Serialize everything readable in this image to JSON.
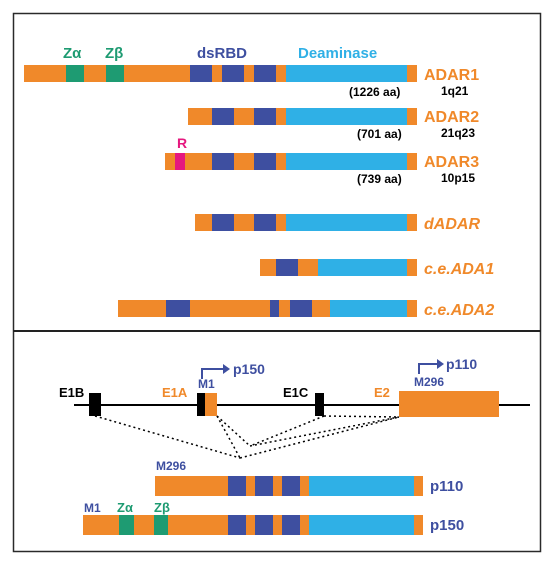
{
  "colors": {
    "orange": "#F0892A",
    "blue": "#2FB0E6",
    "navy": "#3E4FA0",
    "green": "#1E9B72",
    "magenta": "#E5187F",
    "black": "#000000",
    "frame": "#2a2a2a",
    "divider": "#222222"
  },
  "domain_labels": {
    "z_alpha": "Zα",
    "z_beta": "Zβ",
    "dsrbd": "dsRBD",
    "deaminase": "Deaminase",
    "r_domain": "R"
  },
  "proteins": [
    {
      "name": "ADAR1",
      "italic": false,
      "locus": "1q21",
      "length": "(1226 aa)"
    },
    {
      "name": "ADAR2",
      "italic": false,
      "locus": "21q23",
      "length": "(701 aa)"
    },
    {
      "name": "ADAR3",
      "italic": false,
      "locus": "10p15",
      "length": "(739 aa)"
    },
    {
      "name": "dADAR",
      "italic": true,
      "locus": "",
      "length": ""
    },
    {
      "name": "c.e.ADA1",
      "italic": true,
      "locus": "",
      "length": ""
    },
    {
      "name": "c.e.ADA2",
      "italic": true,
      "locus": "",
      "length": ""
    }
  ],
  "gene_structure": {
    "exons": [
      "E1B",
      "E1A",
      "E1C",
      "E2"
    ],
    "start_sites": [
      "M1",
      "M296"
    ],
    "promoters": [
      "p150",
      "p110"
    ]
  },
  "isoforms": [
    {
      "name": "p110",
      "start": "M296"
    },
    {
      "name": "p150",
      "start": "M1"
    }
  ]
}
